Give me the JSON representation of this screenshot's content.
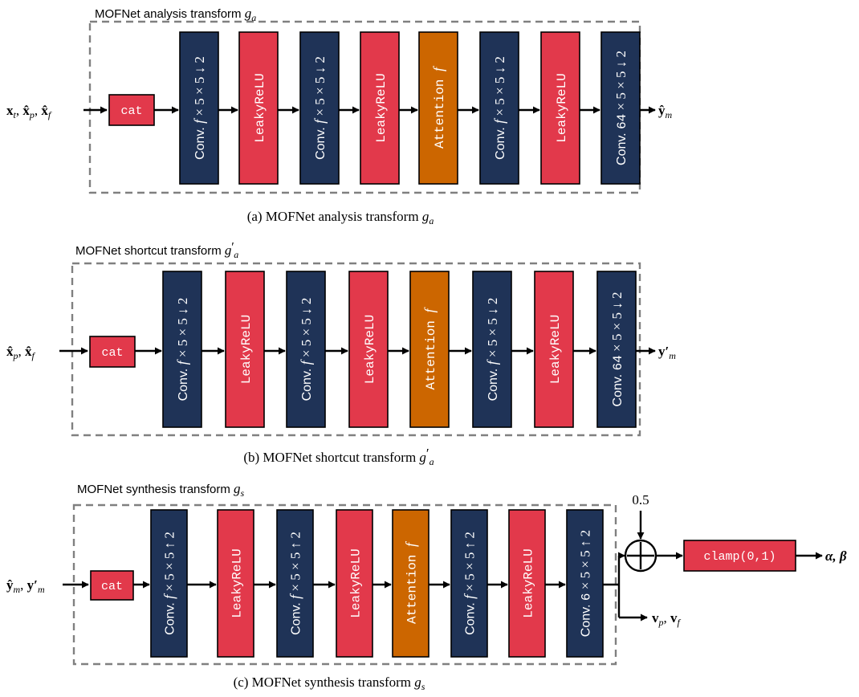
{
  "colors": {
    "conv": "#1f3357",
    "leaky": "#e2394b",
    "attn": "#cc6600",
    "dash": "#808080",
    "ink": "#000000",
    "block_text": "#ffffff"
  },
  "shared": {
    "cat_label": "cat",
    "conv_prefix": "Conv.",
    "leaky_label": "LeakyReLU",
    "attn_word": "Attention",
    "attn_var": "f"
  },
  "panels": [
    {
      "title": "MOFNet analysis transform",
      "title_sym": "g",
      "title_sub": "a",
      "title_prime": "",
      "input_label": "x_t, x̂_p, x̂_f",
      "output_label": "ŷ_m",
      "blocks": [
        {
          "kind": "conv",
          "chan": "f",
          "op": "↓",
          "factor": "2"
        },
        {
          "kind": "leaky"
        },
        {
          "kind": "conv",
          "chan": "f",
          "op": "↓",
          "factor": "2"
        },
        {
          "kind": "leaky"
        },
        {
          "kind": "attn"
        },
        {
          "kind": "conv",
          "chan": "f",
          "op": "↓",
          "factor": "2"
        },
        {
          "kind": "leaky"
        },
        {
          "kind": "conv",
          "chan": "64",
          "op": "↓",
          "factor": "2"
        }
      ],
      "caption_prefix": "(a) MOFNet analysis transform"
    },
    {
      "title": "MOFNet shortcut transform",
      "title_sym": "g",
      "title_sub": "a",
      "title_prime": "′",
      "input_label": "x̂_p, x̂_f",
      "output_label": "y′_m",
      "blocks": [
        {
          "kind": "conv",
          "chan": "f",
          "op": "↓",
          "factor": "2"
        },
        {
          "kind": "leaky"
        },
        {
          "kind": "conv",
          "chan": "f",
          "op": "↓",
          "factor": "2"
        },
        {
          "kind": "leaky"
        },
        {
          "kind": "attn"
        },
        {
          "kind": "conv",
          "chan": "f",
          "op": "↓",
          "factor": "2"
        },
        {
          "kind": "leaky"
        },
        {
          "kind": "conv",
          "chan": "64",
          "op": "↓",
          "factor": "2"
        }
      ],
      "caption_prefix": "(b) MOFNet shortcut transform"
    },
    {
      "title": "MOFNet synthesis transform",
      "title_sym": "g",
      "title_sub": "s",
      "title_prime": "",
      "input_label": "ŷ_m, y′_m",
      "output_label": "v_p, v_f",
      "blocks": [
        {
          "kind": "conv",
          "chan": "f",
          "op": "↑",
          "factor": "2"
        },
        {
          "kind": "leaky"
        },
        {
          "kind": "conv",
          "chan": "f",
          "op": "↑",
          "factor": "2"
        },
        {
          "kind": "leaky"
        },
        {
          "kind": "attn"
        },
        {
          "kind": "conv",
          "chan": "f",
          "op": "↑",
          "factor": "2"
        },
        {
          "kind": "leaky"
        },
        {
          "kind": "conv",
          "chan": "6",
          "op": "↑",
          "factor": "2"
        }
      ],
      "caption_prefix": "(c) MOFNet synthesis transform",
      "extra": {
        "const_label": "0.5",
        "plus_symbol": "+",
        "clamp_label": "clamp(0,1)",
        "final_output": "α, β"
      }
    }
  ]
}
